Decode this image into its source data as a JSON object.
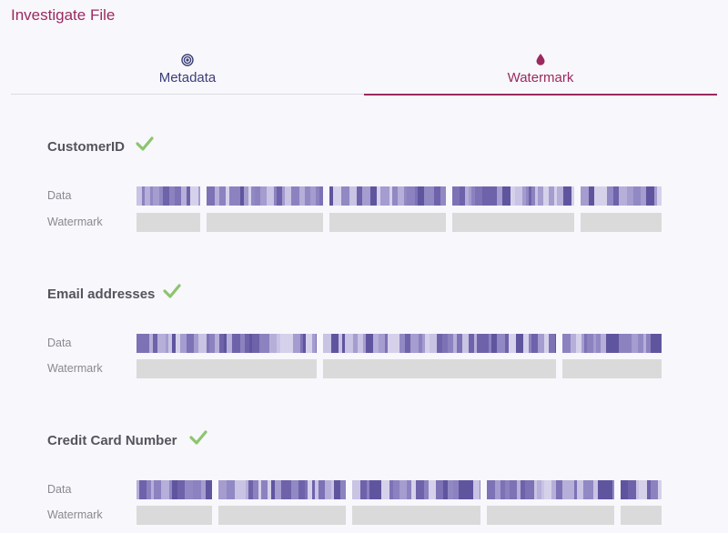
{
  "page": {
    "title": "Investigate File"
  },
  "tabs": [
    {
      "label": "Metadata",
      "icon": "target-icon",
      "active": false
    },
    {
      "label": "Watermark",
      "icon": "drop-icon",
      "active": true
    }
  ],
  "row_labels": {
    "data": "Data",
    "watermark": "Watermark"
  },
  "colors": {
    "accent": "#9a2a5f",
    "tab_inactive": "#3b3f78",
    "check": "#8cc56e",
    "watermark_fill": "#dadada"
  },
  "sections": [
    {
      "title": "CustomerID",
      "verified": true
    },
    {
      "title": "Email addresses",
      "verified": true
    },
    {
      "title": "Credit Card Number",
      "verified": true
    }
  ]
}
